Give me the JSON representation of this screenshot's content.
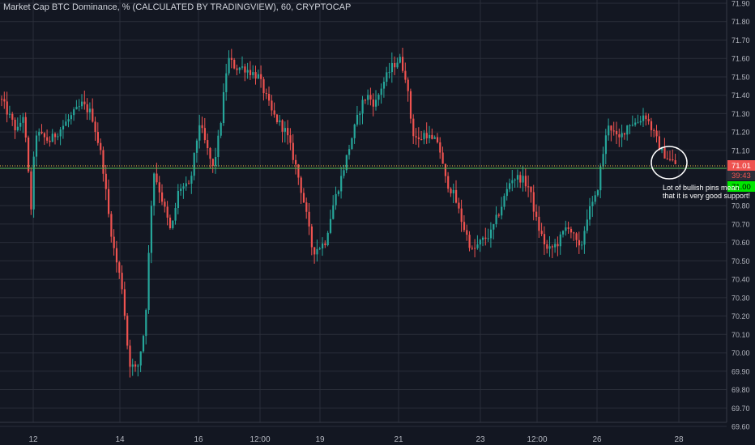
{
  "chart_data": {
    "type": "candlestick",
    "title": "Market Cap BTC Dominance, % (CALCULATED BY TRADINGVIEW), 60, CRYPTOCAP",
    "ylim": [
      69.6,
      71.9
    ],
    "yticks": [
      "71.90",
      "71.80",
      "71.70",
      "71.60",
      "71.50",
      "71.40",
      "71.30",
      "71.20",
      "71.10",
      "71.00",
      "70.90",
      "70.80",
      "70.70",
      "70.60",
      "70.50",
      "70.40",
      "70.30",
      "70.20",
      "70.10",
      "70.00",
      "69.90",
      "69.80",
      "69.70",
      "69.60"
    ],
    "xticks": [
      "12",
      "14",
      "16",
      "12:00",
      "19",
      "21",
      "23",
      "12:00",
      "26",
      "28"
    ],
    "price_path": [
      [
        0,
        71.38
      ],
      [
        20,
        71.2
      ],
      [
        28,
        71.3
      ],
      [
        38,
        70.75
      ],
      [
        42,
        71.2
      ],
      [
        60,
        71.15
      ],
      [
        80,
        71.25
      ],
      [
        100,
        71.35
      ],
      [
        112,
        71.3
      ],
      [
        125,
        71.05
      ],
      [
        133,
        70.75
      ],
      [
        140,
        70.55
      ],
      [
        150,
        70.35
      ],
      [
        158,
        69.95
      ],
      [
        168,
        69.9
      ],
      [
        178,
        70.15
      ],
      [
        188,
        71.0
      ],
      [
        198,
        70.85
      ],
      [
        210,
        70.65
      ],
      [
        220,
        70.9
      ],
      [
        233,
        70.9
      ],
      [
        245,
        71.25
      ],
      [
        255,
        71.1
      ],
      [
        262,
        71.0
      ],
      [
        270,
        71.2
      ],
      [
        280,
        71.6
      ],
      [
        290,
        71.55
      ],
      [
        300,
        71.55
      ],
      [
        318,
        71.5
      ],
      [
        335,
        71.3
      ],
      [
        352,
        71.2
      ],
      [
        365,
        71.0
      ],
      [
        375,
        70.8
      ],
      [
        385,
        70.55
      ],
      [
        400,
        70.6
      ],
      [
        410,
        70.8
      ],
      [
        420,
        70.95
      ],
      [
        432,
        71.15
      ],
      [
        445,
        71.35
      ],
      [
        452,
        71.4
      ],
      [
        462,
        71.35
      ],
      [
        470,
        71.45
      ],
      [
        482,
        71.55
      ],
      [
        492,
        71.6
      ],
      [
        500,
        71.5
      ],
      [
        508,
        71.2
      ],
      [
        516,
        71.15
      ],
      [
        524,
        71.2
      ],
      [
        532,
        71.15
      ],
      [
        540,
        71.15
      ],
      [
        548,
        70.95
      ],
      [
        560,
        70.85
      ],
      [
        570,
        70.7
      ],
      [
        582,
        70.55
      ],
      [
        592,
        70.6
      ],
      [
        605,
        70.65
      ],
      [
        618,
        70.8
      ],
      [
        630,
        70.95
      ],
      [
        642,
        70.95
      ],
      [
        652,
        70.9
      ],
      [
        662,
        70.7
      ],
      [
        675,
        70.55
      ],
      [
        688,
        70.6
      ],
      [
        700,
        70.7
      ],
      [
        715,
        70.55
      ],
      [
        724,
        70.75
      ],
      [
        735,
        70.85
      ],
      [
        742,
        71.05
      ],
      [
        750,
        71.25
      ],
      [
        762,
        71.15
      ],
      [
        775,
        71.25
      ],
      [
        785,
        71.25
      ],
      [
        795,
        71.3
      ],
      [
        805,
        71.2
      ],
      [
        815,
        71.1
      ],
      [
        825,
        71.05
      ],
      [
        835,
        71.02
      ]
    ],
    "last_price_label": "71.01",
    "countdown_label": "39:43",
    "support_label": "71.00",
    "annotation": "Lot of bullish pins mean that it is very good support!",
    "colors": {
      "up": "#26a69a",
      "down": "#ef5350",
      "background": "#131722",
      "grid": "#2a2e39",
      "axis_text": "#b2b5be",
      "support_line": "#4caf50",
      "last_price_line": "#f5c242",
      "support_badge": "#00e600",
      "last_price_badge": "#ef5350"
    }
  }
}
